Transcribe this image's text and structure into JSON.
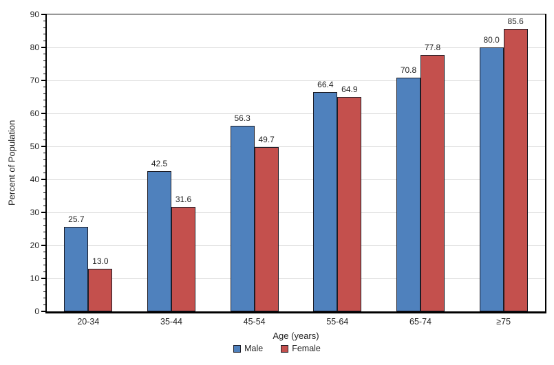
{
  "chart_data": {
    "type": "bar",
    "title": "",
    "categories": [
      "20-34",
      "35-44",
      "45-54",
      "55-64",
      "65-74",
      "≥75"
    ],
    "series": [
      {
        "name": "Male",
        "color": "#4F81BD",
        "values": [
          25.7,
          42.5,
          56.3,
          66.4,
          70.8,
          80.0
        ]
      },
      {
        "name": "Female",
        "color": "#C4504D",
        "values": [
          13.0,
          31.6,
          49.7,
          64.9,
          77.8,
          85.6
        ]
      }
    ],
    "xlabel": "Age (years)",
    "ylabel": "Percent of Population",
    "ylim": [
      0,
      90
    ],
    "ytick_step": 10,
    "minor_tick_step": 2,
    "grid": "horizontal-major",
    "legend_position": "bottom-center",
    "value_label_decimals": 1,
    "colors": {
      "bar_border": "#1c1c26",
      "gridline": "#d9d9d9",
      "axis": "#000000",
      "text": "#1f1f1f",
      "background": "#ffffff"
    }
  }
}
